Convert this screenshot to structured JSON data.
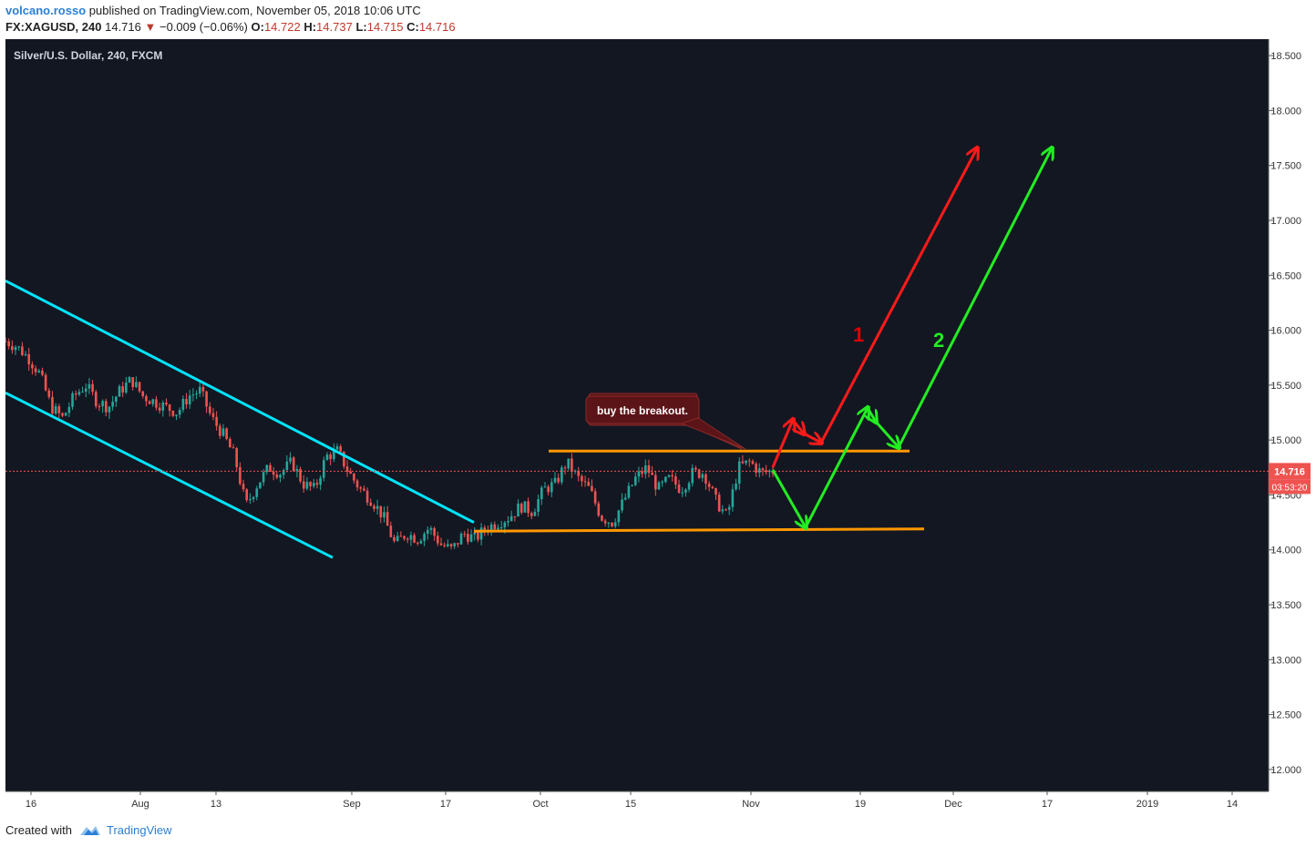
{
  "header": {
    "author": "volcano.rosso",
    "published_text": "published on TradingView.com, November 05, 2018 10:06 UTC",
    "symbol": "FX:XAGUSD, 240",
    "last": "14.716",
    "change": "−0.009 (−0.06%)",
    "o_label": "O:",
    "o": "14.722",
    "h_label": "H:",
    "h": "14.737",
    "l_label": "L:",
    "l": "14.715",
    "c_label": "C:",
    "c": "14.716"
  },
  "footer": {
    "created_with": "Created with",
    "brand": "TradingView"
  },
  "colors": {
    "background": "#131722",
    "up_candle": "#26a69a",
    "down_candle": "#ef5350",
    "channel": "#00e5ff",
    "range": "#ff9800",
    "red_arrow": "#ff1a1a",
    "green_arrow": "#22ee22"
  },
  "chart_data": {
    "type": "candlestick",
    "title": "Silver/U.S. Dollar, 240, FXCM",
    "y_ticks": [
      "18.500",
      "18.000",
      "17.500",
      "17.000",
      "16.500",
      "16.000",
      "15.500",
      "15.000",
      "14.500",
      "14.000",
      "13.500",
      "13.000",
      "12.500",
      "12.000"
    ],
    "ylim": [
      11.8,
      18.65
    ],
    "x_ticks": [
      "16",
      "Aug",
      "13",
      "Sep",
      "17",
      "Oct",
      "15",
      "Nov",
      "19",
      "Dec",
      "17",
      "2019",
      "14"
    ],
    "price_label": "14.716",
    "countdown_label": "03:53:20",
    "price_path": [
      15.9,
      15.85,
      15.75,
      15.6,
      15.3,
      15.2,
      15.4,
      15.5,
      15.35,
      15.3,
      15.45,
      15.55,
      15.4,
      15.35,
      15.3,
      15.25,
      15.4,
      15.45,
      15.2,
      15.05,
      14.85,
      14.4,
      14.6,
      14.75,
      14.7,
      14.8,
      14.6,
      14.55,
      14.85,
      14.9,
      14.7,
      14.55,
      14.45,
      14.3,
      14.05,
      14.15,
      14.1,
      14.2,
      14.05,
      14.0,
      14.15,
      14.1,
      14.2,
      14.25,
      14.3,
      14.4,
      14.35,
      14.55,
      14.6,
      14.8,
      14.65,
      14.55,
      14.3,
      14.25,
      14.45,
      14.65,
      14.75,
      14.55,
      14.65,
      14.55,
      14.7,
      14.7,
      14.45,
      14.3,
      14.75,
      14.8,
      14.7,
      14.72
    ],
    "price_path_span": [
      "Jul 16",
      "Nov 05"
    ],
    "annotations": [
      {
        "type": "text",
        "text": "buy the breakout.",
        "style": "callout"
      },
      {
        "type": "label",
        "text": "1",
        "color": "#e00000"
      },
      {
        "type": "label",
        "text": "2",
        "color": "#22ee22"
      },
      {
        "type": "trendline",
        "name": "descending channel upper",
        "points": [
          [
            0.0,
            16.45
          ],
          [
            0.36,
            14.25
          ]
        ]
      },
      {
        "type": "trendline",
        "name": "descending channel lower",
        "points": [
          [
            0.0,
            15.43
          ],
          [
            0.248,
            13.93
          ]
        ]
      },
      {
        "type": "horizontal",
        "name": "range top",
        "value": 14.9
      },
      {
        "type": "horizontal",
        "name": "range bottom",
        "value": 14.18
      },
      {
        "type": "path",
        "name": "scenario 1",
        "color": "#ff1a1a",
        "points": [
          [
            14.75,
            15.25,
            14.95,
            17.7
          ]
        ]
      },
      {
        "type": "path",
        "name": "scenario 2",
        "color": "#22ee22",
        "points": [
          [
            14.75,
            14.2,
            15.3,
            14.95,
            17.7
          ]
        ]
      }
    ]
  }
}
